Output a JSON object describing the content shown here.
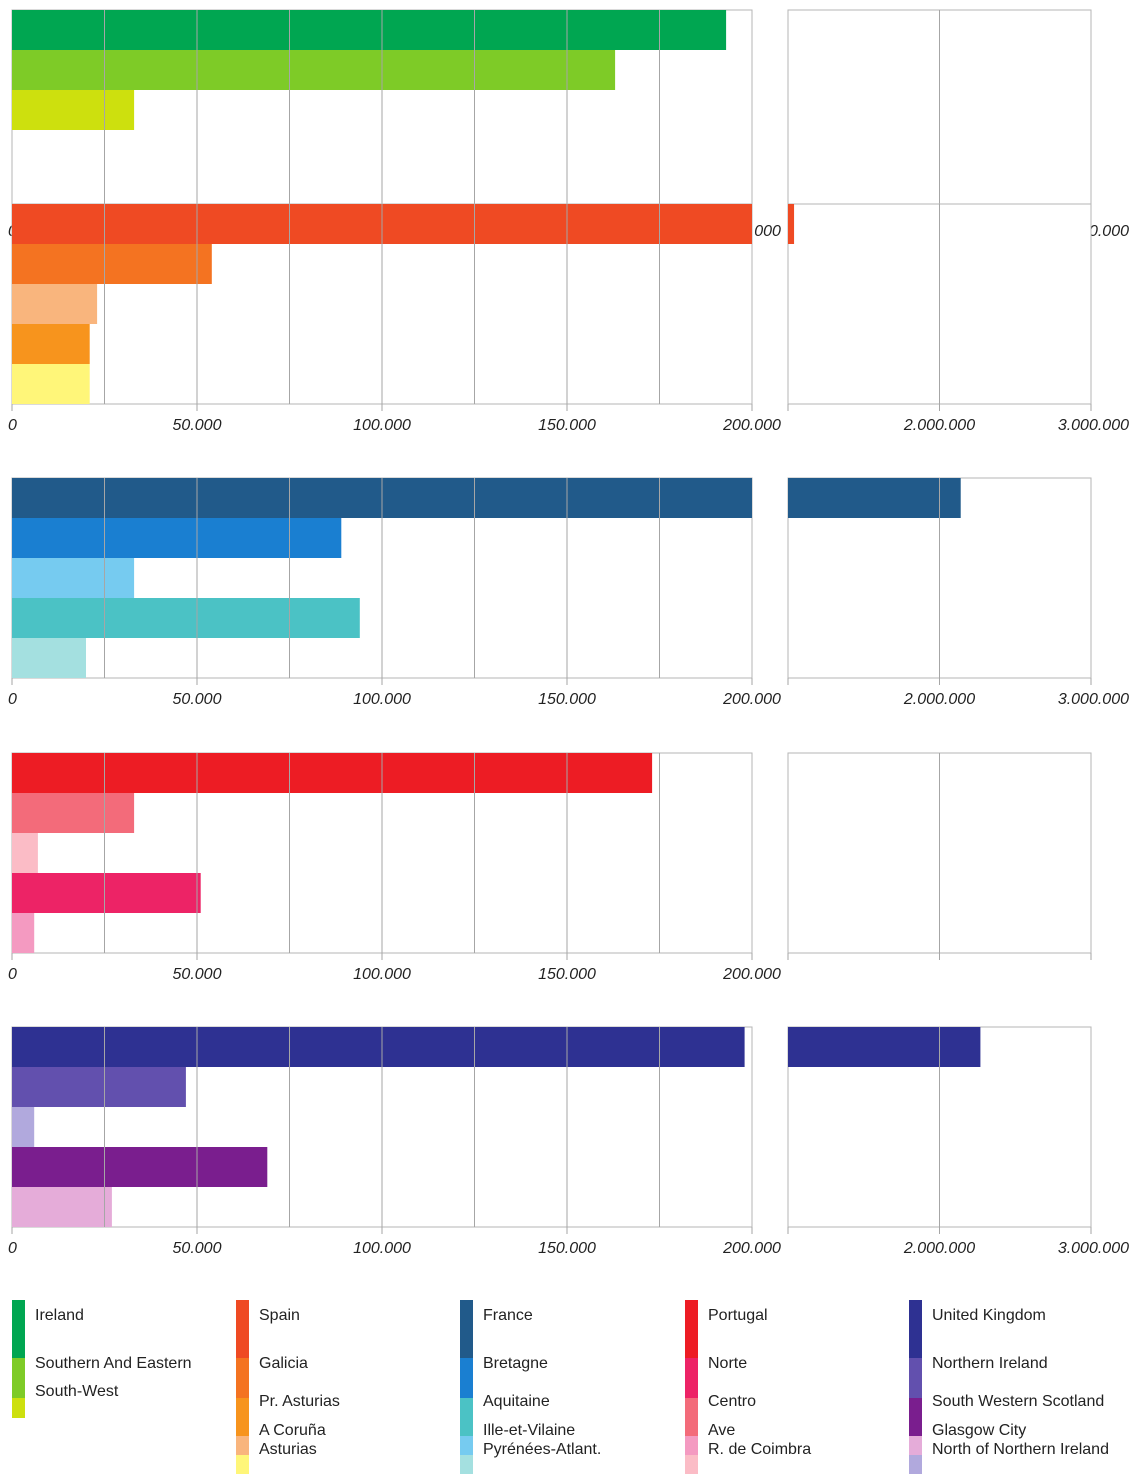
{
  "chart_data": [
    {
      "type": "bar",
      "orientation": "horizontal",
      "group": "Ireland",
      "categories": [
        "Ireland",
        "Southern And Eastern",
        "South-West"
      ],
      "values": [
        193000,
        163000,
        33000
      ],
      "colors": [
        "#00a651",
        "#7ecb27",
        "#cde00e"
      ],
      "x_ticks": [
        "0",
        "50.000",
        "100.000",
        "150.000",
        "200.000"
      ],
      "xlim": [
        0,
        200000
      ],
      "x2_ticks": [
        "2.000.000",
        "3.000.000"
      ],
      "x2lim": [
        1000000,
        3000000
      ],
      "x2_values": [
        null,
        null,
        null
      ],
      "grid": true
    },
    {
      "type": "bar",
      "orientation": "horizontal",
      "group": "Spain",
      "categories": [
        "Spain",
        "Galicia",
        "A Coruña",
        "Pr. Asturias",
        "Asturias"
      ],
      "values": [
        200000,
        54000,
        23000,
        21000,
        21000
      ],
      "colors": [
        "#ef4a23",
        "#f47321",
        "#f9b57d",
        "#f7941d",
        "#fff679"
      ],
      "x_ticks": [
        "0",
        "50.000",
        "100.000",
        "150.000",
        "200.000"
      ],
      "xlim": [
        0,
        200000
      ],
      "x2_ticks": [
        "2.000.000",
        "3.000.000"
      ],
      "x2lim": [
        1000000,
        3000000
      ],
      "x2_values": [
        1040000,
        null,
        null,
        null,
        null
      ],
      "grid": true
    },
    {
      "type": "bar",
      "orientation": "horizontal",
      "group": "France",
      "categories": [
        "France",
        "Bretagne",
        "Ille-et-Vilaine",
        "Aquitaine",
        "Pyrénées-Atlant."
      ],
      "values": [
        200000,
        89000,
        33000,
        94000,
        20000
      ],
      "colors": [
        "#215a8a",
        "#1a7fd1",
        "#76cbf0",
        "#4bc2c5",
        "#a4e0e0"
      ],
      "x_ticks": [
        "0",
        "50.000",
        "100.000",
        "150.000",
        "200.000"
      ],
      "xlim": [
        0,
        200000
      ],
      "x2_ticks": [
        "2.000.000",
        "3.000.000"
      ],
      "x2lim": [
        1000000,
        3000000
      ],
      "x2_values": [
        2140000,
        null,
        null,
        null,
        null
      ],
      "grid": true
    },
    {
      "type": "bar",
      "orientation": "horizontal",
      "group": "Portugal",
      "categories": [
        "Portugal",
        "Centro",
        "R. de Coimbra",
        "Norte",
        "Ave"
      ],
      "values": [
        173000,
        33000,
        7000,
        51000,
        6000
      ],
      "colors": [
        "#ed1c24",
        "#f36b7a",
        "#fbbcc6",
        "#ed2366",
        "#f49ac1"
      ],
      "x_ticks": [
        "0",
        "50.000",
        "100.000",
        "150.000",
        "200.000"
      ],
      "xlim": [
        0,
        200000
      ],
      "x2_ticks": [],
      "x2lim": [
        1000000,
        3000000
      ],
      "x2_values": [
        null,
        null,
        null,
        null,
        null
      ],
      "grid": true
    },
    {
      "type": "bar",
      "orientation": "horizontal",
      "group": "United Kingdom",
      "categories": [
        "United Kingdom",
        "Northern Ireland",
        "North of Northern Ireland",
        "South Western Scotland",
        "Glasgow City"
      ],
      "values": [
        198000,
        47000,
        6000,
        69000,
        27000
      ],
      "colors": [
        "#2e3192",
        "#6250ae",
        "#b1a9dd",
        "#7a1e8e",
        "#e5acd9"
      ],
      "x_ticks": [
        "0",
        "50.000",
        "100.000",
        "150.000",
        "200.000"
      ],
      "xlim": [
        0,
        200000
      ],
      "x2_ticks": [
        "2.000.000",
        "3.000.000"
      ],
      "x2lim": [
        1000000,
        3000000
      ],
      "x2_values": [
        2270000,
        null,
        null,
        null,
        null
      ],
      "grid": true
    }
  ],
  "legend": [
    {
      "items": [
        {
          "label": "Ireland",
          "color": "#00a651"
        },
        {
          "label": "Southern And Eastern",
          "color": "#7ecb27"
        },
        {
          "label": "South-West",
          "color": "#cde00e"
        }
      ]
    },
    {
      "items": [
        {
          "label": "Spain",
          "color": "#ef4a23"
        },
        {
          "label": "Galicia",
          "color": "#f47321"
        },
        {
          "label": "Pr. Asturias",
          "color": "#f7941d"
        },
        {
          "label": "A Coruña",
          "color": "#f9b57d"
        },
        {
          "label": "Asturias",
          "color": "#fff679"
        }
      ]
    },
    {
      "items": [
        {
          "label": "France",
          "color": "#215a8a"
        },
        {
          "label": "Bretagne",
          "color": "#1a7fd1"
        },
        {
          "label": "Aquitaine",
          "color": "#4bc2c5"
        },
        {
          "label": "Ille-et-Vilaine",
          "color": "#76cbf0"
        },
        {
          "label": "Pyrénées-Atlant.",
          "color": "#a4e0e0"
        }
      ]
    },
    {
      "items": [
        {
          "label": "Portugal",
          "color": "#ed1c24"
        },
        {
          "label": "Norte",
          "color": "#ed2366"
        },
        {
          "label": "Centro",
          "color": "#f36b7a"
        },
        {
          "label": "Ave",
          "color": "#f49ac1"
        },
        {
          "label": "R. de Coimbra",
          "color": "#fbbcc6"
        }
      ]
    },
    {
      "items": [
        {
          "label": "United Kingdom",
          "color": "#2e3192"
        },
        {
          "label": "Northern Ireland",
          "color": "#6250ae"
        },
        {
          "label": "South Western Scotland",
          "color": "#7a1e8e"
        },
        {
          "label": "Glasgow City",
          "color": "#e5acd9"
        },
        {
          "label": "North of Northern Ireland",
          "color": "#b1a9dd"
        }
      ]
    }
  ]
}
